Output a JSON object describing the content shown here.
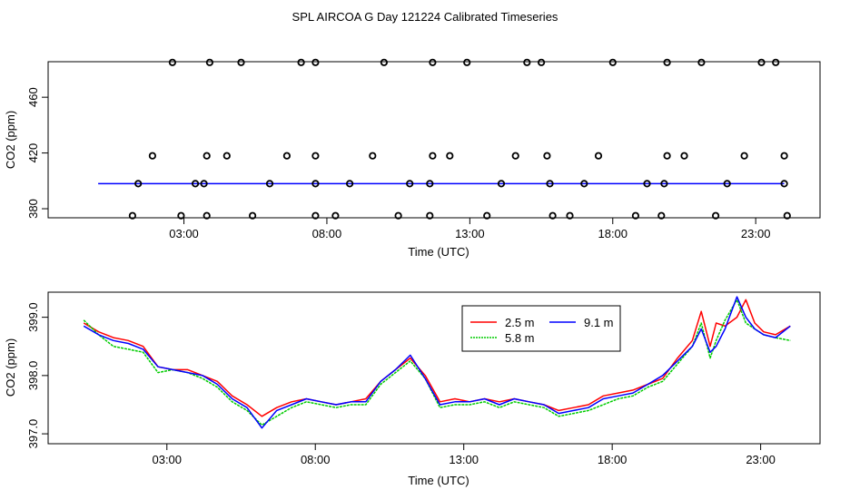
{
  "title": "SPL AIRCOA G  Day 121224  Calibrated Timeseries",
  "chart_data": [
    {
      "type": "scatter+line",
      "xlabel": "Time (UTC)",
      "ylabel": "CO2 (ppm)",
      "xticks": [
        "03:00",
        "08:00",
        "13:00",
        "18:00",
        "23:00"
      ],
      "xtick_values": [
        3,
        8,
        13,
        18,
        23
      ],
      "yticks": [
        "380",
        "420",
        "460"
      ],
      "ytick_values": [
        380,
        420,
        460
      ],
      "xlim": [
        -1.75,
        25.25
      ],
      "ylim": [
        373.5,
        485.5
      ],
      "markers": {
        "y375": [
          1.2,
          2.9,
          3.8,
          5.4,
          7.6,
          8.3,
          10.5,
          11.6,
          13.6,
          15.9,
          16.5,
          18.8,
          19.7,
          21.6,
          24.1
        ],
        "y398": [
          1.4,
          3.4,
          3.7,
          6.0,
          7.6,
          8.8,
          10.9,
          11.6,
          14.1,
          15.8,
          17.0,
          19.2,
          19.8,
          22.0,
          24.0
        ],
        "y418": [
          1.9,
          3.8,
          4.5,
          6.6,
          7.6,
          9.6,
          11.7,
          12.3,
          14.6,
          15.7,
          17.5,
          19.9,
          20.5,
          22.6,
          24.0
        ],
        "y485": [
          2.6,
          3.9,
          5.0,
          7.1,
          7.6,
          10.0,
          11.7,
          12.9,
          15.0,
          15.5,
          18.0,
          19.9,
          21.1,
          23.2,
          23.7
        ]
      },
      "series": [
        {
          "name": "mean",
          "color": "#0000ff",
          "x": [
            0,
            24
          ],
          "values": [
            398,
            398
          ]
        }
      ]
    },
    {
      "type": "line",
      "xlabel": "Time (UTC)",
      "ylabel": "CO2 (ppm)",
      "xticks": [
        "03:00",
        "08:00",
        "13:00",
        "18:00",
        "23:00"
      ],
      "xtick_values": [
        3,
        8,
        13,
        18,
        23
      ],
      "yticks": [
        "397.0",
        "398.0",
        "399.0"
      ],
      "ytick_values": [
        397.0,
        398.0,
        399.0
      ],
      "xlim": [
        -1.0,
        25.0
      ],
      "ylim": [
        396.83,
        399.43
      ],
      "legend": {
        "position": "top-center",
        "entries": [
          {
            "label": "2.5 m",
            "color": "#ff0000"
          },
          {
            "label": "9.1 m",
            "color": "#0000ff"
          },
          {
            "label": "5.8 m",
            "color": "#00cc00"
          }
        ]
      },
      "series": [
        {
          "name": "2.5 m",
          "color": "#ff0000",
          "x": [
            0.2,
            0.7,
            1.2,
            1.7,
            2.2,
            2.7,
            3.2,
            3.7,
            4.2,
            4.7,
            5.2,
            5.7,
            6.2,
            6.7,
            7.2,
            7.7,
            8.2,
            8.7,
            9.2,
            9.7,
            10.2,
            10.7,
            11.2,
            11.7,
            12.2,
            12.7,
            13.2,
            13.7,
            14.2,
            14.7,
            15.2,
            15.7,
            16.2,
            16.7,
            17.2,
            17.7,
            18.2,
            18.7,
            19.2,
            19.7,
            20.2,
            20.7,
            21.0,
            21.3,
            21.5,
            21.8,
            22.2,
            22.5,
            22.8,
            23.1,
            23.5,
            24.0
          ],
          "values": [
            398.9,
            398.75,
            398.65,
            398.6,
            398.5,
            398.15,
            398.1,
            398.1,
            398.0,
            397.9,
            397.65,
            397.5,
            397.3,
            397.45,
            397.55,
            397.6,
            397.55,
            397.5,
            397.55,
            397.6,
            397.9,
            398.1,
            398.3,
            398.0,
            397.55,
            397.6,
            397.55,
            397.6,
            397.55,
            397.6,
            397.55,
            397.5,
            397.4,
            397.45,
            397.5,
            397.65,
            397.7,
            397.75,
            397.85,
            397.95,
            398.3,
            398.6,
            399.1,
            398.5,
            398.9,
            398.85,
            399.0,
            399.3,
            398.9,
            398.75,
            398.7,
            398.85
          ]
        },
        {
          "name": "5.8 m",
          "color": "#00cc00",
          "x": [
            0.2,
            0.7,
            1.2,
            1.7,
            2.2,
            2.7,
            3.2,
            3.7,
            4.2,
            4.7,
            5.2,
            5.7,
            6.2,
            6.7,
            7.2,
            7.7,
            8.2,
            8.7,
            9.2,
            9.7,
            10.2,
            10.7,
            11.2,
            11.7,
            12.2,
            12.7,
            13.2,
            13.7,
            14.2,
            14.7,
            15.2,
            15.7,
            16.2,
            16.7,
            17.2,
            17.7,
            18.2,
            18.7,
            19.2,
            19.7,
            20.2,
            20.7,
            21.0,
            21.3,
            21.5,
            21.8,
            22.2,
            22.5,
            22.8,
            23.1,
            23.5,
            24.0
          ],
          "values": [
            398.95,
            398.7,
            398.5,
            398.45,
            398.4,
            398.05,
            398.1,
            398.05,
            397.95,
            397.8,
            397.55,
            397.4,
            397.15,
            397.3,
            397.45,
            397.55,
            397.5,
            397.45,
            397.5,
            397.5,
            397.85,
            398.05,
            398.25,
            397.95,
            397.45,
            397.5,
            397.5,
            397.55,
            397.45,
            397.55,
            397.5,
            397.45,
            397.3,
            397.35,
            397.4,
            397.5,
            397.6,
            397.65,
            397.8,
            397.9,
            398.2,
            398.5,
            398.9,
            398.3,
            398.6,
            398.95,
            399.3,
            398.9,
            398.8,
            398.7,
            398.65,
            398.6
          ]
        },
        {
          "name": "9.1 m",
          "color": "#0000ff",
          "x": [
            0.2,
            0.7,
            1.2,
            1.7,
            2.2,
            2.7,
            3.2,
            3.7,
            4.2,
            4.7,
            5.2,
            5.7,
            6.2,
            6.7,
            7.2,
            7.7,
            8.2,
            8.7,
            9.2,
            9.7,
            10.2,
            10.7,
            11.2,
            11.7,
            12.2,
            12.7,
            13.2,
            13.7,
            14.2,
            14.7,
            15.2,
            15.7,
            16.2,
            16.7,
            17.2,
            17.7,
            18.2,
            18.7,
            19.2,
            19.7,
            20.2,
            20.7,
            21.0,
            21.3,
            21.5,
            21.8,
            22.2,
            22.5,
            22.8,
            23.1,
            23.5,
            24.0
          ],
          "values": [
            398.85,
            398.7,
            398.6,
            398.55,
            398.45,
            398.15,
            398.1,
            398.05,
            398.0,
            397.85,
            397.6,
            397.45,
            397.1,
            397.4,
            397.5,
            397.6,
            397.55,
            397.5,
            397.55,
            397.55,
            397.9,
            398.1,
            398.35,
            397.95,
            397.5,
            397.55,
            397.55,
            397.6,
            397.5,
            397.6,
            397.55,
            397.5,
            397.35,
            397.4,
            397.45,
            397.6,
            397.65,
            397.7,
            397.85,
            398.0,
            398.25,
            398.5,
            398.8,
            398.4,
            398.5,
            398.8,
            399.35,
            399.0,
            398.8,
            398.7,
            398.65,
            398.85
          ]
        }
      ]
    }
  ]
}
